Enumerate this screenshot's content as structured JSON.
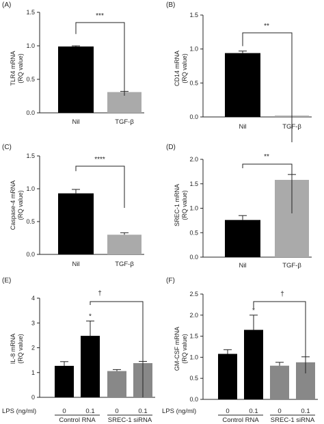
{
  "chart_data": [
    {
      "panel": "(A)",
      "type": "bar",
      "ylabel": "TLR4 mRNA",
      "ylabel2": "(RQ value)",
      "categories": [
        "Nil",
        "TGF-β"
      ],
      "values": [
        0.99,
        0.31
      ],
      "errors": [
        0.01,
        0.01
      ],
      "colors": [
        "#000000",
        "#aaaaaa"
      ],
      "ylim": [
        0,
        1.5
      ],
      "yticks": [
        "0.0",
        "0.5",
        "1.0",
        "1.5"
      ],
      "sig": "***"
    },
    {
      "panel": "(B)",
      "type": "bar",
      "ylabel": "CD14 mRNA",
      "ylabel2": "(RQ value)",
      "categories": [
        "Nil",
        "TGF-β"
      ],
      "values": [
        0.94,
        0.02
      ],
      "errors": [
        0.03,
        0.005
      ],
      "colors": [
        "#000000",
        "#aaaaaa"
      ],
      "ylim": [
        0,
        1.5
      ],
      "yticks": [
        "0.0",
        "0.5",
        "1.0",
        "1.5"
      ],
      "sig": "**"
    },
    {
      "panel": "(C)",
      "type": "bar",
      "ylabel": "Caspase-4 mRNA",
      "ylabel2": "(RQ value)",
      "categories": [
        "Nil",
        "TGF-β"
      ],
      "values": [
        0.93,
        0.3
      ],
      "errors": [
        0.06,
        0.03
      ],
      "colors": [
        "#000000",
        "#aaaaaa"
      ],
      "ylim": [
        0,
        1.5
      ],
      "yticks": [
        "0.0",
        "0.5",
        "1.0",
        "1.5"
      ],
      "sig": "****"
    },
    {
      "panel": "(D)",
      "type": "bar",
      "ylabel": "SREC-1 mRNA",
      "ylabel2": "(RQ value)",
      "categories": [
        "Nil",
        "TGF-β"
      ],
      "values": [
        0.76,
        1.58
      ],
      "errors": [
        0.09,
        0.11
      ],
      "colors": [
        "#000000",
        "#aaaaaa"
      ],
      "ylim": [
        0,
        2.0
      ],
      "yticks": [
        "0.0",
        "0.5",
        "1.0",
        "1.5",
        "2.0"
      ],
      "sig": "**"
    },
    {
      "panel": "(E)",
      "type": "bar",
      "ylabel": "IL-8 mRNA",
      "ylabel2": "(RQ value)",
      "lps_label": "LPS (ng/ml)",
      "categories": [
        "0",
        "0.1",
        "0",
        "0.1"
      ],
      "values": [
        1.27,
        2.48,
        1.06,
        1.38
      ],
      "errors": [
        0.17,
        0.6,
        0.06,
        0.07
      ],
      "colors": [
        "#000000",
        "#000000",
        "#888888",
        "#888888"
      ],
      "groups": [
        "Control RNA",
        "SREC-1 siRNA"
      ],
      "ylim": [
        0,
        4
      ],
      "yticks": [
        "0",
        "1",
        "2",
        "3",
        "4"
      ],
      "star": "*",
      "sig": "†"
    },
    {
      "panel": "(F)",
      "type": "bar",
      "ylabel": "GM-CSF mRNA",
      "ylabel2": "(RQ value)",
      "lps_label": "LPS (ng/ml)",
      "categories": [
        "0",
        "0.1",
        "0",
        "0.1"
      ],
      "values": [
        1.08,
        1.65,
        0.8,
        0.88
      ],
      "errors": [
        0.1,
        0.35,
        0.08,
        0.13
      ],
      "colors": [
        "#000000",
        "#000000",
        "#888888",
        "#888888"
      ],
      "groups": [
        "Control RNA",
        "SREC-1 siRNA"
      ],
      "ylim": [
        0,
        2.5
      ],
      "yticks": [
        "0.0",
        "0.5",
        "1.0",
        "1.5",
        "2.0",
        "2.5"
      ],
      "star": "*",
      "sig": "†"
    }
  ]
}
